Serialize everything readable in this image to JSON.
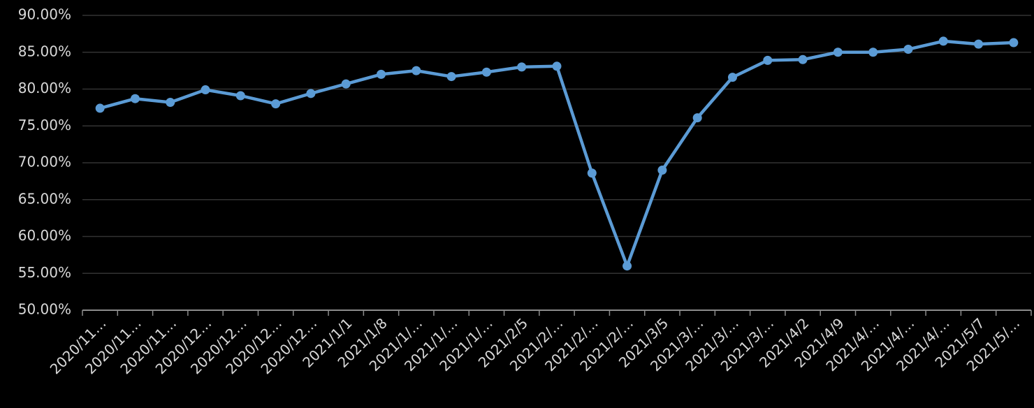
{
  "chart_data": {
    "type": "line",
    "color": "#5b9bd5",
    "grid": true,
    "categories": [
      "2020/11…",
      "2020/11…",
      "2020/11…",
      "2020/12…",
      "2020/12…",
      "2020/12…",
      "2020/12…",
      "2021/1/1",
      "2021/1/8",
      "2021/1/…",
      "2021/1/…",
      "2021/1/…",
      "2021/2/5",
      "2021/2/…",
      "2021/2/…",
      "2021/2/…",
      "2021/3/5",
      "2021/3/…",
      "2021/3/…",
      "2021/3/…",
      "2021/4/2",
      "2021/4/9",
      "2021/4/…",
      "2021/4/…",
      "2021/4/…",
      "2021/5/7",
      "2021/5/…"
    ],
    "values": [
      77.4,
      78.7,
      78.2,
      79.9,
      79.1,
      78.0,
      79.4,
      80.7,
      82.0,
      82.5,
      81.7,
      82.3,
      83.0,
      83.1,
      68.6,
      56.0,
      69.0,
      76.1,
      81.6,
      83.9,
      84.0,
      85.0,
      85.0,
      85.4,
      86.5,
      86.1,
      86.3
    ],
    "ylim": [
      50,
      90
    ],
    "yticks": [
      {
        "value": 50,
        "label": "50.00%"
      },
      {
        "value": 55,
        "label": "55.00%"
      },
      {
        "value": 60,
        "label": "60.00%"
      },
      {
        "value": 65,
        "label": "65.00%"
      },
      {
        "value": 70,
        "label": "70.00%"
      },
      {
        "value": 75,
        "label": "75.00%"
      },
      {
        "value": 80,
        "label": "80.00%"
      },
      {
        "value": 85,
        "label": "85.00%"
      },
      {
        "value": 90,
        "label": "90.00%"
      }
    ]
  }
}
